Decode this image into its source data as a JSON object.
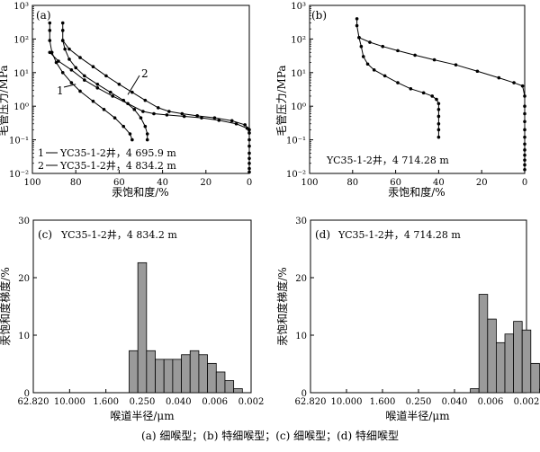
{
  "caption": "(a) 细喉型；(b) 特细喉型；(c) 细喉型；(d) 特细喉型",
  "chart_data": [
    {
      "id": "a",
      "type": "line",
      "panel_label": "(a)",
      "xlabel": "汞饱和度/%",
      "ylabel": "毛管压力/MPa",
      "xlim": [
        100,
        0
      ],
      "ylim": [
        0.01,
        1000
      ],
      "yscale": "log",
      "xticks": [
        "100",
        "80",
        "60",
        "40",
        "20",
        "0"
      ],
      "yticks": [
        "10⁻²",
        "10⁻¹",
        "10⁰",
        "10¹",
        "10²",
        "10³"
      ],
      "ytick_values": [
        0.01,
        0.1,
        1,
        10,
        100,
        1000
      ],
      "legend": [
        {
          "index": "1",
          "label": "YC35-1-2井，4 695.9 m"
        },
        {
          "index": "2",
          "label": "YC35-1-2井，4 834.2 m"
        }
      ],
      "curve_labels": [
        "1",
        "2"
      ],
      "series": [
        {
          "name": "YC35-1-2井，4 695.9 m",
          "direction": "injection",
          "points": [
            [
              92,
              300
            ],
            [
              92,
              180
            ],
            [
              92,
              90
            ],
            [
              91,
              40
            ],
            [
              89,
              20
            ],
            [
              86,
              10
            ],
            [
              82,
              5
            ],
            [
              78,
              2.8
            ],
            [
              72,
              1.4
            ],
            [
              67,
              0.8
            ],
            [
              62,
              0.45
            ],
            [
              58,
              0.25
            ],
            [
              55,
              0.15
            ],
            [
              54,
              0.1
            ]
          ]
        },
        {
          "name": "YC35-1-2井，4 834.2 m",
          "direction": "injection",
          "points": [
            [
              86,
              300
            ],
            [
              86,
              180
            ],
            [
              86,
              90
            ],
            [
              85,
              50
            ],
            [
              83,
              25
            ],
            [
              80,
              14
            ],
            [
              76,
              8
            ],
            [
              70,
              4.5
            ],
            [
              64,
              2.6
            ],
            [
              58,
              1.5
            ],
            [
              53,
              0.8
            ],
            [
              50,
              0.45
            ],
            [
              48,
              0.25
            ],
            [
              47,
              0.15
            ],
            [
              47,
              0.1
            ]
          ]
        },
        {
          "name": "YC35-1-2井，4 834.2 m",
          "direction": "withdrawal",
          "points": [
            [
              86,
              90
            ],
            [
              83,
              50
            ],
            [
              78,
              28
            ],
            [
              72,
              15
            ],
            [
              66,
              8
            ],
            [
              60,
              4.5
            ],
            [
              54,
              2.6
            ],
            [
              48,
              1.5
            ],
            [
              42,
              0.9
            ],
            [
              37,
              0.7
            ],
            [
              31,
              0.6
            ],
            [
              24,
              0.52
            ],
            [
              16,
              0.45
            ],
            [
              8,
              0.37
            ],
            [
              2,
              0.28
            ],
            [
              0,
              0.2
            ]
          ]
        },
        {
          "name": "YC35-1-2井，4 695.9 m",
          "direction": "withdrawal",
          "points": [
            [
              92,
              40
            ],
            [
              88,
              22
            ],
            [
              82,
              12
            ],
            [
              76,
              6
            ],
            [
              70,
              3.5
            ],
            [
              63,
              2
            ],
            [
              56,
              1.2
            ],
            [
              49,
              0.7
            ],
            [
              44,
              0.6
            ],
            [
              38,
              0.55
            ],
            [
              30,
              0.5
            ],
            [
              22,
              0.45
            ],
            [
              14,
              0.38
            ],
            [
              6,
              0.3
            ],
            [
              1,
              0.22
            ],
            [
              0,
              0.16
            ],
            [
              0,
              0.1
            ],
            [
              0,
              0.065
            ],
            [
              0,
              0.04
            ],
            [
              0,
              0.028
            ],
            [
              0,
              0.02
            ],
            [
              0,
              0.014
            ],
            [
              0,
              0.011
            ]
          ]
        }
      ]
    },
    {
      "id": "b",
      "type": "line",
      "panel_label": "(b)",
      "xlabel": "汞饱和度/%",
      "ylabel": "毛管压力/MPa",
      "xlim": [
        100,
        0
      ],
      "ylim": [
        0.01,
        1000
      ],
      "yscale": "log",
      "xticks": [
        "100",
        "80",
        "60",
        "40",
        "20",
        "0"
      ],
      "yticks": [
        "10⁻²",
        "10⁻¹",
        "10⁰",
        "10¹",
        "10²",
        "10³"
      ],
      "ytick_values": [
        0.01,
        0.1,
        1,
        10,
        100,
        1000
      ],
      "annotation": "YC35-1-2井，4 714.28 m",
      "series": [
        {
          "name": "YC35-1-2井，4 714.28 m",
          "direction": "injection",
          "points": [
            [
              78,
              400
            ],
            [
              78,
              250
            ],
            [
              77,
              110
            ],
            [
              76,
              60
            ],
            [
              75,
              30
            ],
            [
              73,
              18
            ],
            [
              70,
              12
            ],
            [
              65,
              8
            ],
            [
              59,
              5
            ],
            [
              53,
              3.3
            ],
            [
              47,
              2.5
            ],
            [
              43,
              2
            ],
            [
              41,
              1.6
            ],
            [
              40,
              1.2
            ],
            [
              40,
              0.8
            ],
            [
              40,
              0.5
            ],
            [
              40,
              0.3
            ],
            [
              40,
              0.2
            ],
            [
              40,
              0.12
            ]
          ]
        },
        {
          "name": "YC35-1-2井，4 714.28 m",
          "direction": "withdrawal",
          "points": [
            [
              77,
              110
            ],
            [
              72,
              80
            ],
            [
              66,
              60
            ],
            [
              59,
              45
            ],
            [
              51,
              33
            ],
            [
              42,
              24
            ],
            [
              32,
              17
            ],
            [
              22,
              11
            ],
            [
              12,
              7
            ],
            [
              5,
              5
            ],
            [
              1,
              4
            ],
            [
              0,
              2
            ],
            [
              0,
              1
            ],
            [
              0,
              0.6
            ],
            [
              0,
              0.35
            ],
            [
              0,
              0.2
            ],
            [
              0,
              0.12
            ],
            [
              0,
              0.075
            ],
            [
              0,
              0.05
            ],
            [
              0,
              0.035
            ],
            [
              0,
              0.025
            ],
            [
              0,
              0.018
            ],
            [
              0,
              0.013
            ]
          ]
        }
      ]
    },
    {
      "id": "c",
      "type": "bar",
      "panel_label": "(c)",
      "xlabel": "喉道半径/μm",
      "ylabel": "汞饱和度梯度/%",
      "xticks": [
        "62.820",
        "10.000",
        "1.600",
        "0.250",
        "0.040",
        "0.006",
        "0.002"
      ],
      "ylim": [
        0,
        30
      ],
      "yticks": [
        "0",
        "10",
        "20",
        "30"
      ],
      "ytick_values": [
        0,
        10,
        20,
        30
      ],
      "annotation": "YC35-1-2井，4 834.2 m",
      "x_bin_start": 11,
      "values": [
        7.3,
        22.6,
        7.3,
        5.8,
        5.8,
        5.8,
        6.6,
        7.3,
        6.6,
        5.1,
        3.6,
        2.1,
        0.7
      ]
    },
    {
      "id": "d",
      "type": "bar",
      "panel_label": "(d)",
      "xlabel": "喉道半径/μm",
      "ylabel": "汞饱和度梯度/%",
      "xticks": [
        "62.820",
        "10.000",
        "1.600",
        "0.250",
        "0.040",
        "0.006",
        "0.002"
      ],
      "ylim": [
        0,
        30
      ],
      "yticks": [
        "0",
        "10",
        "20",
        "30"
      ],
      "ytick_values": [
        0,
        10,
        20,
        30
      ],
      "annotation": "YC35-1-2井，4 714.28 m",
      "x_bin_start": 18.5,
      "values": [
        0.7,
        17.1,
        12.8,
        8.7,
        10.2,
        12.4,
        10.9,
        5.1,
        0.6
      ]
    }
  ]
}
